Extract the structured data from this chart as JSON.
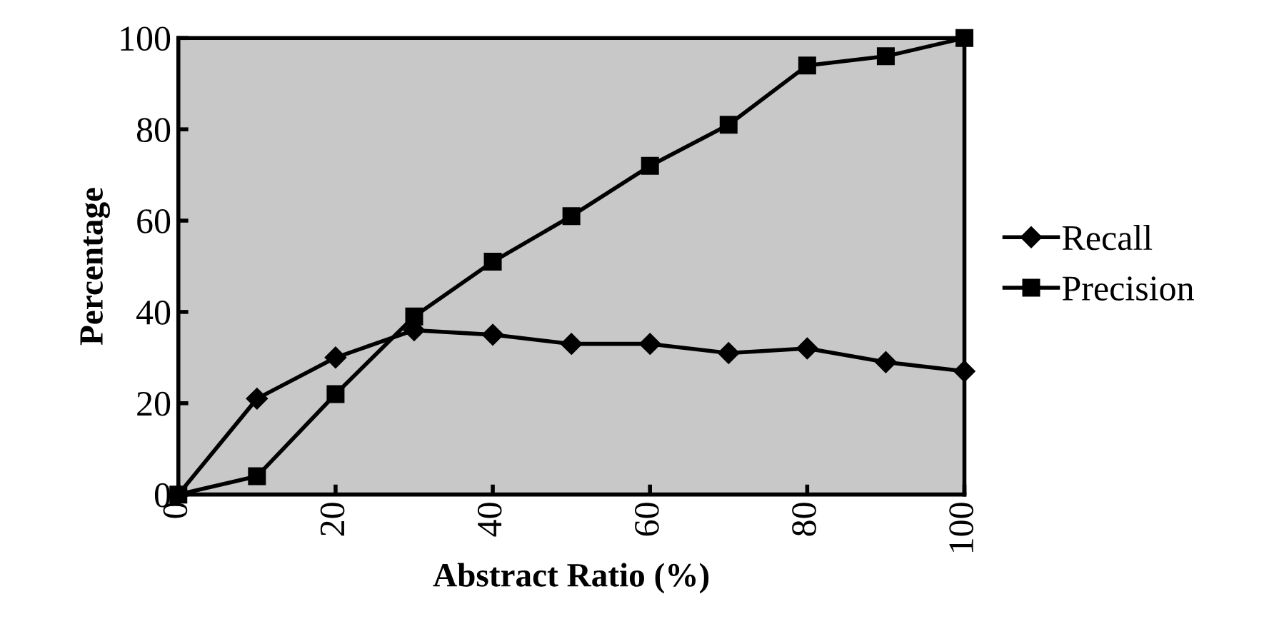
{
  "chart_data": {
    "type": "line",
    "xlabel": "Abstract Ratio (%)",
    "ylabel": "Percentage",
    "x": [
      0,
      10,
      20,
      30,
      40,
      50,
      60,
      70,
      80,
      90,
      100
    ],
    "series": [
      {
        "name": "Recall",
        "color": "#000000",
        "marker": "diamond",
        "values": [
          0,
          21,
          30,
          36,
          35,
          33,
          33,
          31,
          32,
          29,
          27
        ]
      },
      {
        "name": "Precision",
        "color": "#000000",
        "marker": "square",
        "values": [
          0,
          4,
          22,
          39,
          51,
          61,
          72,
          81,
          94,
          96,
          100
        ]
      }
    ],
    "xlim": [
      0,
      100
    ],
    "xticks": [
      0,
      20,
      40,
      60,
      80,
      100
    ],
    "ylim": [
      0,
      100
    ],
    "yticks": [
      0,
      20,
      40,
      60,
      80,
      100
    ],
    "grid": false,
    "legend": "right"
  }
}
